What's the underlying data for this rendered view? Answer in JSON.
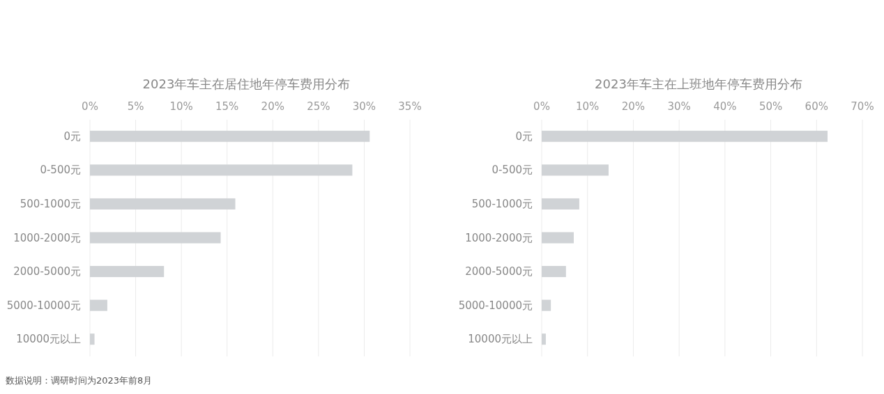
{
  "chart_data": [
    {
      "type": "bar",
      "orientation": "horizontal",
      "title": "2023年车主在居住地年停车费用分布",
      "categories": [
        "0元",
        "0-500元",
        "500-1000元",
        "1000-2000元",
        "2000-5000元",
        "5000-10000元",
        "10000元以上"
      ],
      "values": [
        30.6,
        28.7,
        15.9,
        14.3,
        8.1,
        1.9,
        0.5
      ],
      "color": "#d0d3d6",
      "xlim": [
        0,
        35
      ],
      "xticks": [
        {
          "value": 0,
          "label": "0%"
        },
        {
          "value": 5,
          "label": "5%"
        },
        {
          "value": 10,
          "label": "10%"
        },
        {
          "value": 15,
          "label": "15%"
        },
        {
          "value": 20,
          "label": "20%"
        },
        {
          "value": 25,
          "label": "25%"
        },
        {
          "value": 30,
          "label": "30%"
        },
        {
          "value": 35,
          "label": "35%"
        }
      ],
      "grid": "x",
      "annotations": [
        "数据说明：调研时间为2023年前8月"
      ]
    },
    {
      "type": "bar",
      "orientation": "horizontal",
      "title": "2023年车主在上班地年停车费用分布",
      "categories": [
        "0元",
        "0-500元",
        "500-1000元",
        "1000-2000元",
        "2000-5000元",
        "5000-10000元",
        "10000元以上"
      ],
      "values": [
        62.4,
        14.6,
        8.2,
        7.0,
        5.3,
        2.0,
        0.9
      ],
      "color": "#d0d3d6",
      "xlim": [
        0,
        70
      ],
      "xticks": [
        {
          "value": 0,
          "label": "0%"
        },
        {
          "value": 10,
          "label": "10%"
        },
        {
          "value": 20,
          "label": "20%"
        },
        {
          "value": 30,
          "label": "30%"
        },
        {
          "value": 40,
          "label": "40%"
        },
        {
          "value": 50,
          "label": "50%"
        },
        {
          "value": 60,
          "label": "60%"
        },
        {
          "value": 70,
          "label": "70%"
        }
      ],
      "grid": "x"
    }
  ]
}
